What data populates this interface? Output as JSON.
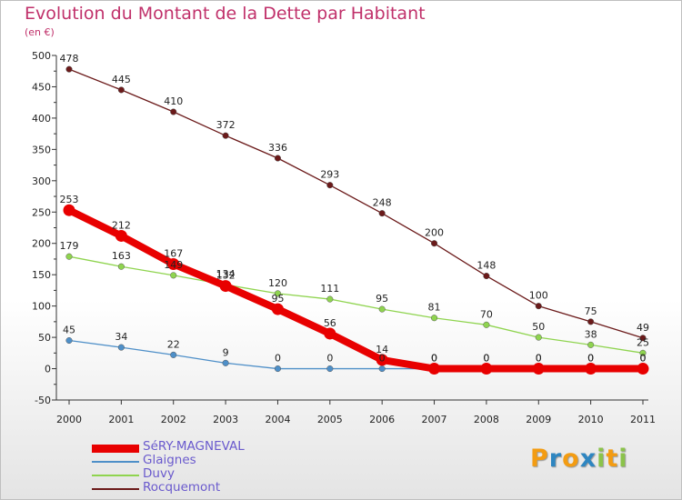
{
  "title": "Evolution du Montant de la Dette par Habitant",
  "subtitle": "(en €)",
  "logo": {
    "letters": [
      "P",
      "r",
      "o",
      "x",
      "i",
      "t",
      "i"
    ],
    "colors": [
      "#f39c12",
      "#2e86c1",
      "#f39c12",
      "#2e86c1",
      "#8bc34a",
      "#f39c12",
      "#8bc34a"
    ]
  },
  "chart_data": {
    "type": "line",
    "x": [
      "2000",
      "2001",
      "2002",
      "2003",
      "2004",
      "2005",
      "2006",
      "2007",
      "2008",
      "2009",
      "2010",
      "2011"
    ],
    "ylim": [
      -50,
      500
    ],
    "yticks": [
      "-50",
      "0",
      "50",
      "100",
      "150",
      "200",
      "250",
      "300",
      "350",
      "400",
      "450",
      "500"
    ],
    "ytick_values": [
      -50,
      0,
      50,
      100,
      150,
      200,
      250,
      300,
      350,
      400,
      450,
      500
    ],
    "grid": false,
    "legend_position": "bottom-left",
    "series": [
      {
        "name": "Rocquemont",
        "color": "#6b1a1a",
        "values": [
          478,
          445,
          410,
          372,
          336,
          293,
          248,
          200,
          148,
          100,
          75,
          49
        ],
        "labels": [
          "478",
          "445",
          "410",
          "372",
          "336",
          "293",
          "248",
          "200",
          "148",
          "100",
          "75",
          "49"
        ]
      },
      {
        "name": "Duvy",
        "color": "#8fd44f",
        "values": [
          179,
          163,
          149,
          134,
          120,
          111,
          95,
          81,
          70,
          50,
          38,
          25
        ],
        "labels": [
          "179",
          "163",
          "149",
          "134",
          "120",
          "111",
          "95",
          "81",
          "70",
          "50",
          "38",
          "25"
        ]
      },
      {
        "name": "Glaignes",
        "color": "#4e8fc8",
        "values": [
          45,
          34,
          22,
          9,
          0,
          0,
          0,
          0,
          0,
          0,
          0,
          0
        ],
        "labels": [
          "45",
          "34",
          "22",
          "9",
          "0",
          "0",
          "0",
          "0",
          "0",
          "0",
          "0",
          "0"
        ]
      },
      {
        "name": "SéRY-MAGNEVAL",
        "color": "#e80000",
        "values": [
          253,
          212,
          167,
          132,
          95,
          56,
          14,
          0,
          0,
          0,
          0,
          0
        ],
        "labels": [
          "253",
          "212",
          "167",
          "132",
          "95",
          "56",
          "14",
          "0",
          "0",
          "0",
          "0",
          "0"
        ]
      }
    ]
  }
}
